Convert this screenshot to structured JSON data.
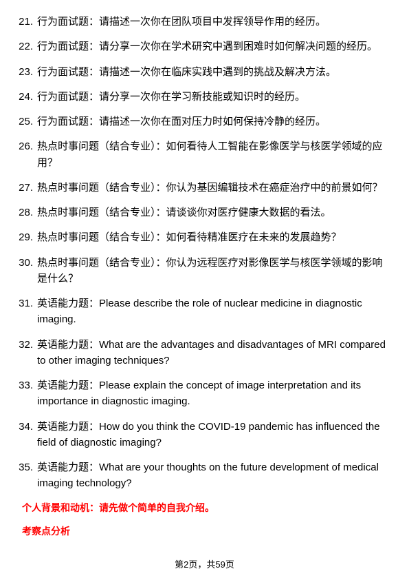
{
  "items": [
    {
      "n": "21.",
      "t": "行为面试题：请描述一次你在团队项目中发挥领导作用的经历。"
    },
    {
      "n": "22.",
      "t": "行为面试题：请分享一次你在学术研究中遇到困难时如何解决问题的经历。"
    },
    {
      "n": "23.",
      "t": "行为面试题：请描述一次你在临床实践中遇到的挑战及解决方法。"
    },
    {
      "n": "24.",
      "t": "行为面试题：请分享一次你在学习新技能或知识时的经历。"
    },
    {
      "n": "25.",
      "t": "行为面试题：请描述一次你在面对压力时如何保持冷静的经历。"
    },
    {
      "n": "26.",
      "t": "热点时事问题（结合专业）：如何看待人工智能在影像医学与核医学领域的应用？"
    },
    {
      "n": "27.",
      "t": "热点时事问题（结合专业）：你认为基因编辑技术在癌症治疗中的前景如何？"
    },
    {
      "n": "28.",
      "t": "热点时事问题（结合专业）：请谈谈你对医疗健康大数据的看法。"
    },
    {
      "n": "29.",
      "t": "热点时事问题（结合专业）：如何看待精准医疗在未来的发展趋势？"
    },
    {
      "n": "30.",
      "t": "热点时事问题（结合专业）：你认为远程医疗对影像医学与核医学领域的影响是什么？"
    },
    {
      "n": "31.",
      "t": "英语能力题：Please describe the role of nuclear medicine in diagnostic imaging."
    },
    {
      "n": "32.",
      "t": "英语能力题：What are the advantages and disadvantages of MRI compared to other imaging techniques?"
    },
    {
      "n": "33.",
      "t": "英语能力题：Please explain the concept of image interpretation and its importance in diagnostic imaging."
    },
    {
      "n": "34.",
      "t": "英语能力题：How do you think the COVID-19 pandemic has influenced the field of diagnostic imaging?"
    },
    {
      "n": "35.",
      "t": "英语能力题：What are your thoughts on the future development of medical imaging technology?"
    }
  ],
  "red": {
    "line1": "个人背景和动机：请先做个简单的自我介绍。",
    "line2": "考察点分析"
  },
  "footer": "第2页，共59页"
}
